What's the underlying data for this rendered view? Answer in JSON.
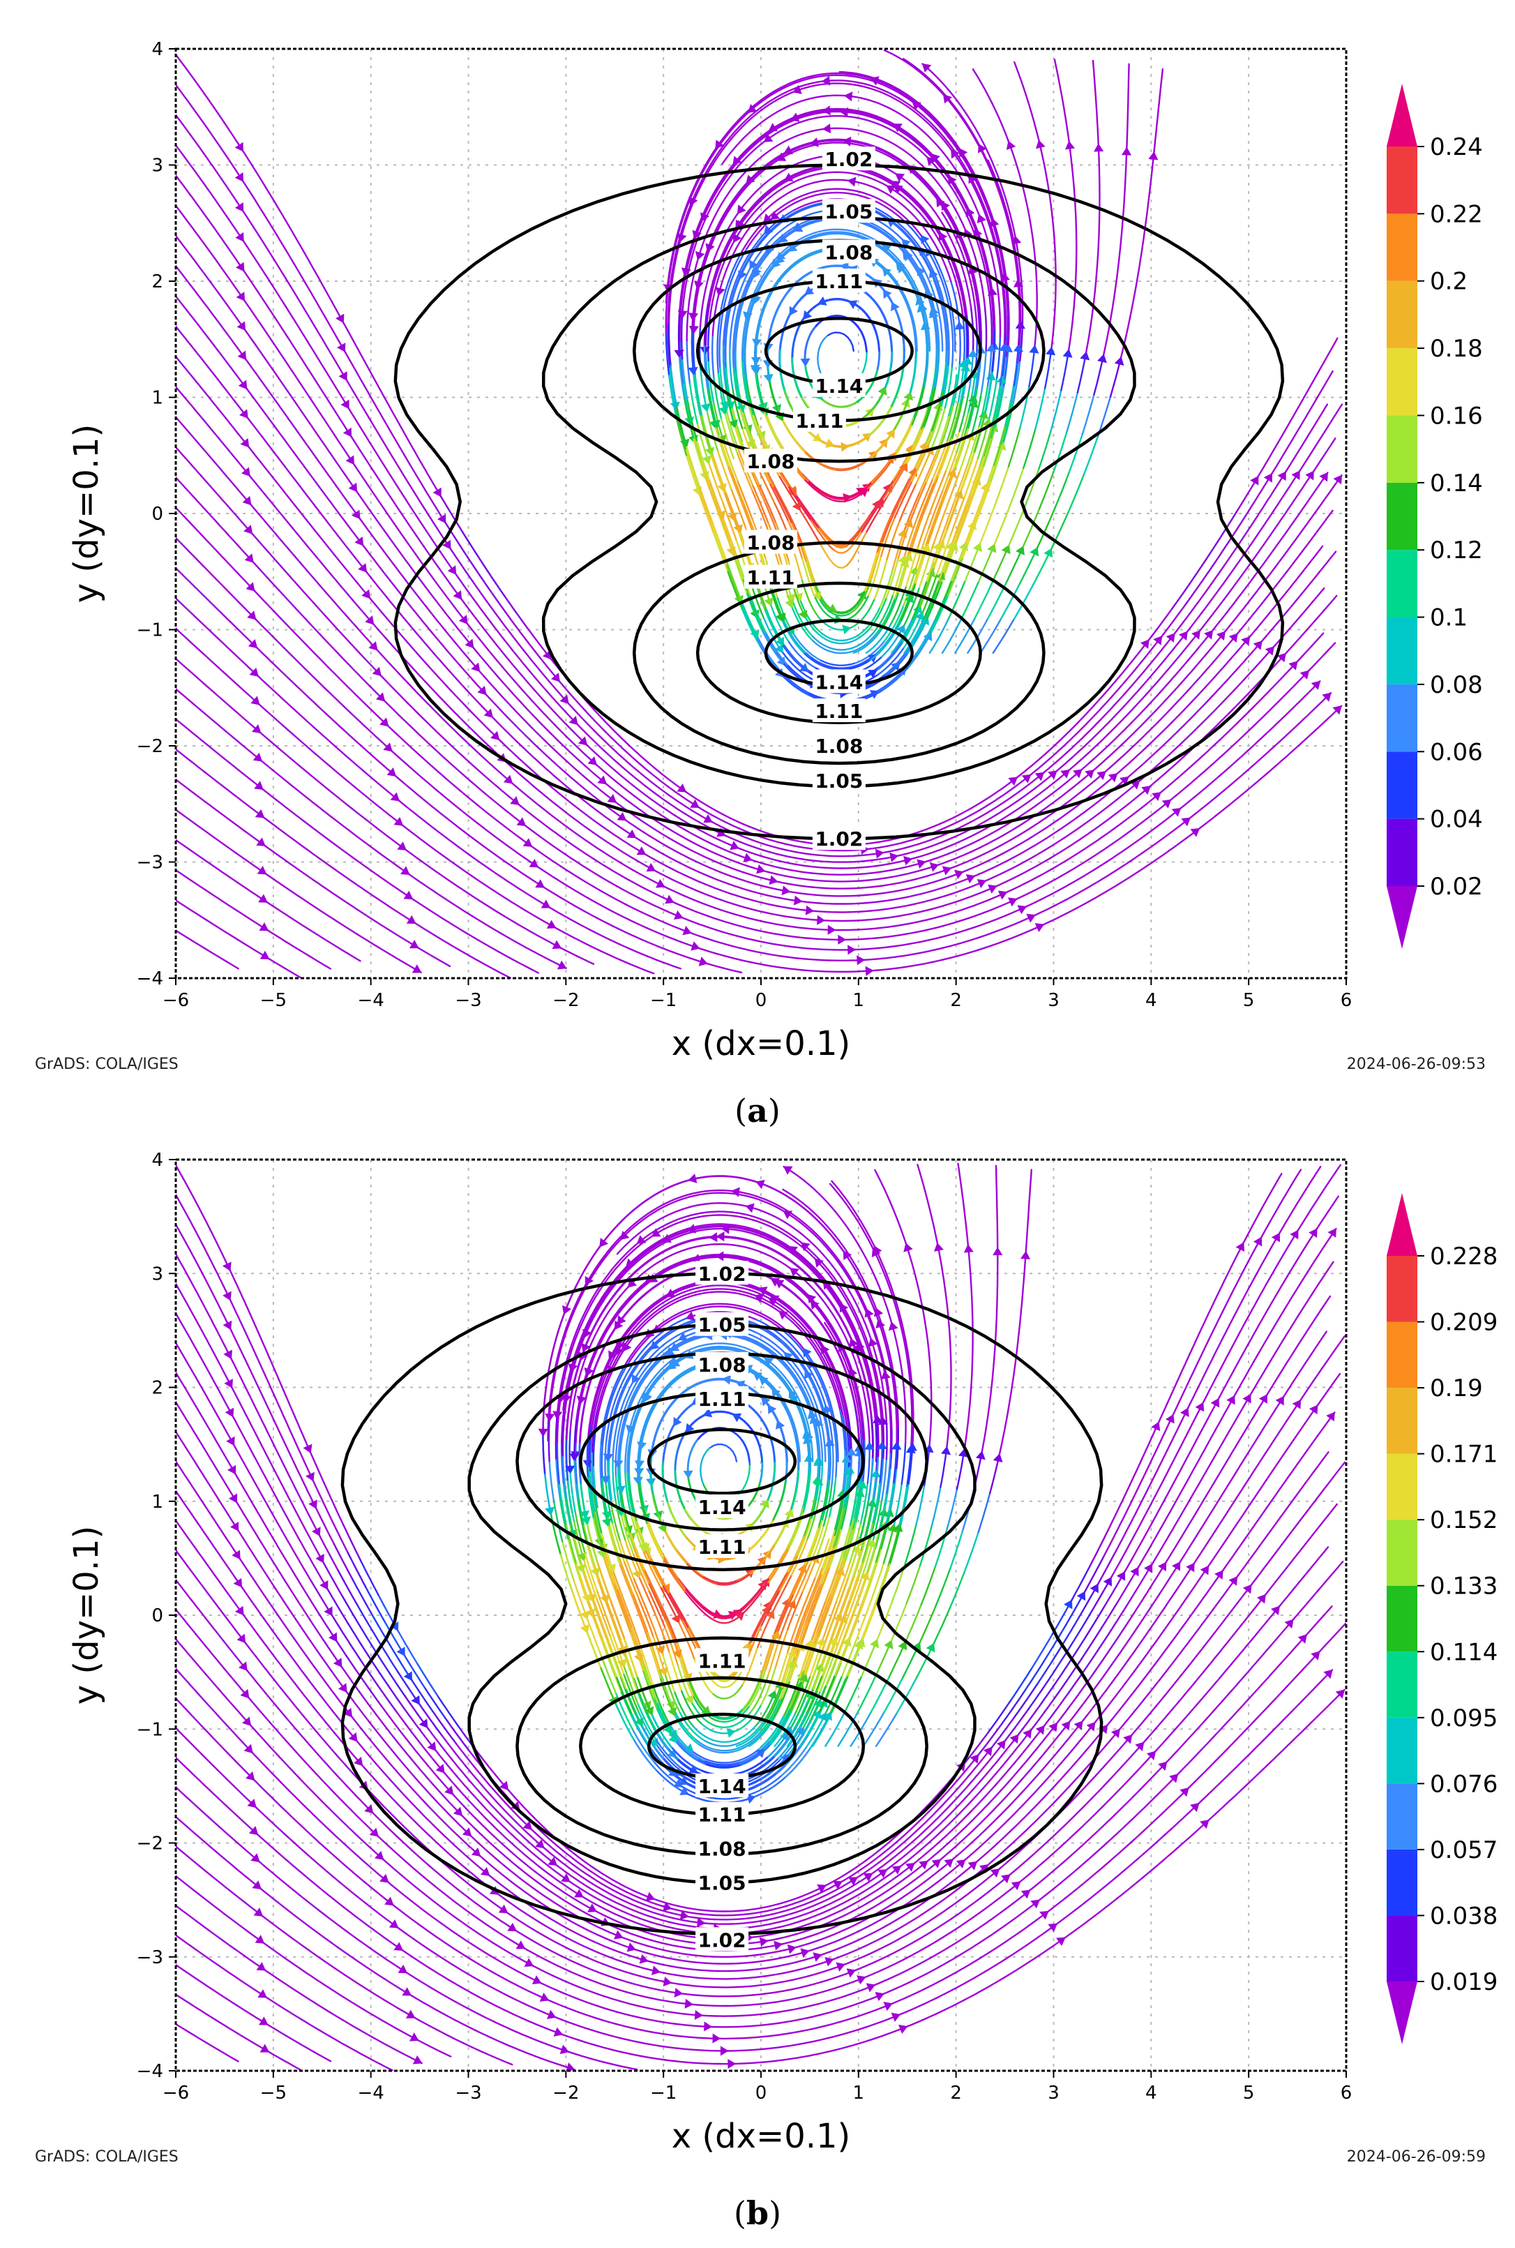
{
  "chart_data": [
    {
      "type": "streamline-contour",
      "panel_label": "a",
      "xlabel": "x (dx=0.1)",
      "ylabel": "y (dy=0.1)",
      "xlim": [
        -6,
        6
      ],
      "ylim": [
        -4,
        4
      ],
      "xticks": [
        "-6",
        "-5",
        "-4",
        "-3",
        "-2",
        "-1",
        "0",
        "1",
        "2",
        "3",
        "4",
        "5",
        "6"
      ],
      "yticks": [
        "-4",
        "-3",
        "-2",
        "-1",
        "0",
        "1",
        "2",
        "3",
        "4"
      ],
      "grid": true,
      "footer_left": "GrADS: COLA/IGES",
      "footer_right": "2024-06-26-09:53",
      "colorbar_labels": [
        "0.02",
        "0.04",
        "0.06",
        "0.08",
        "0.1",
        "0.12",
        "0.14",
        "0.16",
        "0.18",
        "0.2",
        "0.22",
        "0.24"
      ],
      "colorbar_colors": [
        "#a000d8",
        "#6e00e8",
        "#1e3cff",
        "#3a8cff",
        "#00c8c8",
        "#00d88c",
        "#20c020",
        "#a0e632",
        "#e6dc32",
        "#f0b428",
        "#fa8c1e",
        "#f03c3c",
        "#e6007a"
      ],
      "contour_levels": [
        "1.02",
        "1.05",
        "1.08",
        "1.11",
        "1.14"
      ],
      "vortex_centers": [
        [
          0.8,
          1.4
        ],
        [
          0.8,
          -1.2
        ]
      ],
      "outer_pinch_x": [
        -3.4,
        4.9
      ],
      "contour_label_positions": [
        [
          0.9,
          3.05
        ],
        [
          0.9,
          2.6
        ],
        [
          0.9,
          2.25
        ],
        [
          0.8,
          2.0
        ],
        [
          0.8,
          1.1
        ],
        [
          0.6,
          0.8
        ],
        [
          0.1,
          0.45
        ],
        [
          0.1,
          -0.25
        ],
        [
          0.1,
          -0.55
        ],
        [
          0.8,
          -1.45
        ],
        [
          0.8,
          -1.7
        ],
        [
          0.8,
          -2.0
        ],
        [
          0.8,
          -2.3
        ],
        [
          0.8,
          -2.8
        ]
      ],
      "contour_label_texts": [
        "1.02",
        "1.05",
        "1.08",
        "1.11",
        "1.14",
        "1.11",
        "1.08",
        "1.08",
        "1.11",
        "1.14",
        "1.11",
        "1.08",
        "1.05",
        "1.02"
      ]
    },
    {
      "type": "streamline-contour",
      "panel_label": "b",
      "xlabel": "x (dx=0.1)",
      "ylabel": "y (dy=0.1)",
      "xlim": [
        -6,
        6
      ],
      "ylim": [
        -4,
        4
      ],
      "xticks": [
        "-6",
        "-5",
        "-4",
        "-3",
        "-2",
        "-1",
        "0",
        "1",
        "2",
        "3",
        "4",
        "5",
        "6"
      ],
      "yticks": [
        "-4",
        "-3",
        "-2",
        "-1",
        "0",
        "1",
        "2",
        "3",
        "4"
      ],
      "grid": true,
      "footer_left": "GrADS: COLA/IGES",
      "footer_right": "2024-06-26-09:59",
      "colorbar_labels": [
        "0.019",
        "0.038",
        "0.057",
        "0.076",
        "0.095",
        "0.114",
        "0.133",
        "0.152",
        "0.171",
        "0.19",
        "0.209",
        "0.228"
      ],
      "colorbar_colors": [
        "#a000d8",
        "#6e00e8",
        "#1e3cff",
        "#3a8cff",
        "#00c8c8",
        "#00d88c",
        "#20c020",
        "#a0e632",
        "#e6dc32",
        "#f0b428",
        "#fa8c1e",
        "#f03c3c",
        "#e6007a"
      ],
      "contour_levels": [
        "1.02",
        "1.05",
        "1.08",
        "1.11",
        "1.14"
      ],
      "vortex_centers": [
        [
          -0.4,
          1.35
        ],
        [
          -0.4,
          -1.15
        ]
      ],
      "outer_pinch_x": [
        -3.9,
        3.2
      ],
      "contour_label_positions": [
        [
          -0.4,
          3.0
        ],
        [
          -0.4,
          2.55
        ],
        [
          -0.4,
          2.2
        ],
        [
          -0.4,
          1.9
        ],
        [
          -0.4,
          0.95
        ],
        [
          -0.4,
          0.6
        ],
        [
          -0.4,
          -0.4
        ],
        [
          -0.4,
          -1.5
        ],
        [
          -0.4,
          -1.75
        ],
        [
          -0.4,
          -2.05
        ],
        [
          -0.4,
          -2.35
        ],
        [
          -0.4,
          -2.85
        ]
      ],
      "contour_label_texts": [
        "1.02",
        "1.05",
        "1.08",
        "1.11",
        "1.14",
        "1.11",
        "1.11",
        "1.14",
        "1.11",
        "1.08",
        "1.05",
        "1.02"
      ]
    }
  ]
}
